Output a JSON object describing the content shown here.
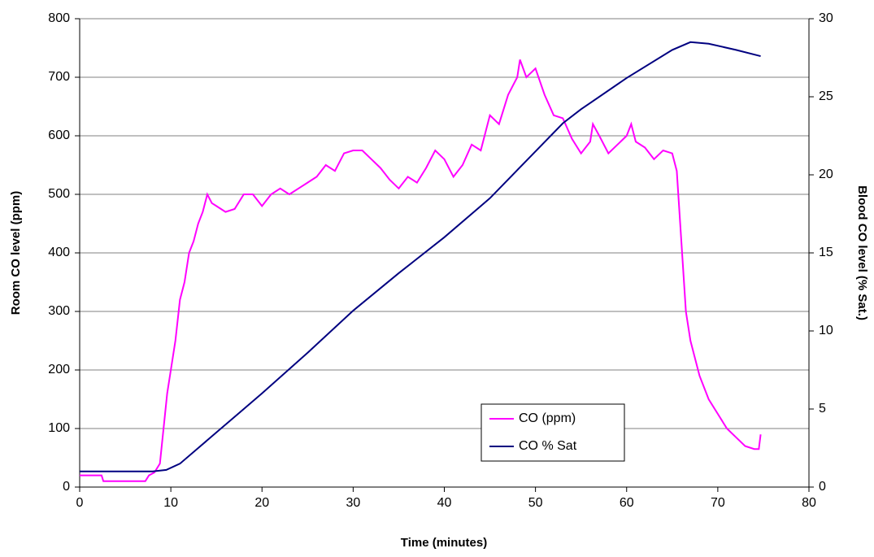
{
  "chart_data": {
    "type": "line",
    "xlabel": "Time (minutes)",
    "ylabel": "Room CO level (ppm)",
    "y2label": "Blood CO level (% Sat.)",
    "xlim": [
      0,
      80
    ],
    "xticks": [
      0,
      10,
      20,
      30,
      40,
      50,
      60,
      70,
      80
    ],
    "ylim": [
      0,
      800
    ],
    "yticks": [
      0,
      100,
      200,
      300,
      400,
      500,
      600,
      700,
      800
    ],
    "y2lim": [
      0,
      30
    ],
    "y2ticks": [
      0,
      5,
      10,
      15,
      20,
      25,
      30
    ],
    "grid": true,
    "series": [
      {
        "name": "CO (ppm)",
        "color": "#ff00ff",
        "axis": "y",
        "x": [
          0,
          2.4,
          2.6,
          7.2,
          7.6,
          8.2,
          8.8,
          9.2,
          9.6,
          10.0,
          10.5,
          11.0,
          11.5,
          12.0,
          12.5,
          13.0,
          13.5,
          14.0,
          14.5,
          15.0,
          15.5,
          16.0,
          17.0,
          18.0,
          19.0,
          20.0,
          21.0,
          22.0,
          23.0,
          24.0,
          25.0,
          26.0,
          27.0,
          28.0,
          29.0,
          30.0,
          31.0,
          32.0,
          33.0,
          34.0,
          35.0,
          36.0,
          37.0,
          38.0,
          39.0,
          40.0,
          41.0,
          42.0,
          43.0,
          44.0,
          45.0,
          46.0,
          47.0,
          48.0,
          48.3,
          49.0,
          50.0,
          51.0,
          52.0,
          53.0,
          54.0,
          55.0,
          56.0,
          56.3,
          57.0,
          58.0,
          59.0,
          60.0,
          60.5,
          61.0,
          62.0,
          63.0,
          64.0,
          65.0,
          65.5,
          66.0,
          66.5,
          67.0,
          68.0,
          69.0,
          70.0,
          71.0,
          72.0,
          73.0,
          74.0,
          74.5,
          74.7
        ],
        "values": [
          20,
          20,
          10,
          10,
          20,
          25,
          40,
          100,
          160,
          200,
          250,
          320,
          350,
          400,
          420,
          450,
          470,
          500,
          485,
          480,
          475,
          470,
          475,
          500,
          500,
          480,
          500,
          510,
          500,
          510,
          520,
          530,
          550,
          540,
          570,
          575,
          575,
          560,
          545,
          525,
          510,
          530,
          520,
          545,
          575,
          560,
          530,
          550,
          585,
          575,
          635,
          620,
          670,
          700,
          730,
          700,
          715,
          670,
          635,
          630,
          595,
          570,
          590,
          620,
          600,
          570,
          585,
          600,
          620,
          590,
          580,
          560,
          575,
          570,
          540,
          420,
          300,
          250,
          190,
          150,
          125,
          100,
          85,
          70,
          65,
          65,
          90
        ]
      },
      {
        "name": "CO % Sat",
        "color": "#000080",
        "axis": "y2",
        "x": [
          0,
          8,
          9.5,
          11,
          13,
          15,
          20,
          25,
          30,
          35,
          40,
          45,
          50,
          53,
          55,
          60,
          65,
          67,
          69,
          72,
          74.7
        ],
        "values": [
          1,
          1,
          1.1,
          1.5,
          2.5,
          3.5,
          6,
          8.6,
          11.3,
          13.7,
          16,
          18.5,
          21.5,
          23.3,
          24.2,
          26.2,
          28,
          28.5,
          28.4,
          28,
          27.6
        ]
      }
    ]
  }
}
